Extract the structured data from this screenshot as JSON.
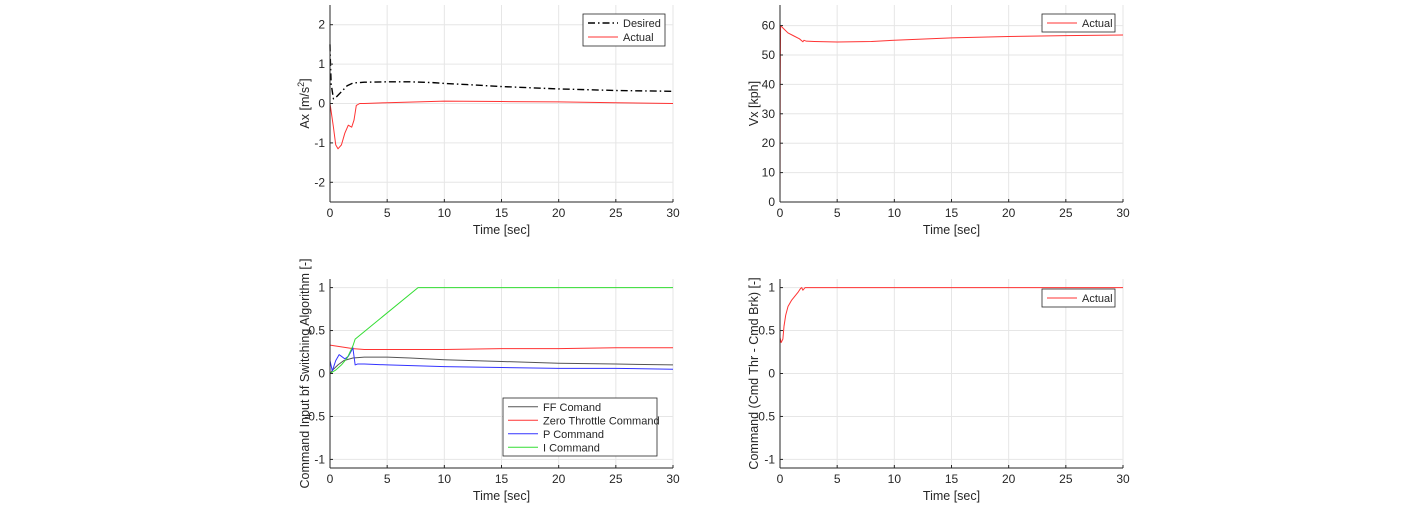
{
  "chart_data": [
    {
      "type": "line",
      "xlabel": "Time [sec]",
      "ylabel": "Ax [m/s^2]",
      "xlim": [
        0,
        30
      ],
      "ylim": [
        -2.5,
        2.5
      ],
      "xticks": [
        0,
        5,
        10,
        15,
        20,
        25,
        30
      ],
      "yticks": [
        -2,
        -1,
        0,
        1,
        2
      ],
      "grid": true,
      "legend_position": "top-right",
      "series": [
        {
          "name": "Desired",
          "color": "#000000",
          "dash": "dash-dot",
          "x": [
            0,
            0.02,
            0.1,
            0.3,
            0.5,
            1.0,
            1.5,
            2.0,
            3,
            5,
            7,
            9,
            10,
            12,
            15,
            20,
            25,
            30
          ],
          "y": [
            1.5,
            1.2,
            0.5,
            0.12,
            0.15,
            0.3,
            0.45,
            0.52,
            0.54,
            0.55,
            0.55,
            0.53,
            0.51,
            0.48,
            0.43,
            0.37,
            0.33,
            0.31
          ]
        },
        {
          "name": "Actual",
          "color": "#ff3333",
          "dash": "solid",
          "x": [
            0,
            0.3,
            0.5,
            0.7,
            1.0,
            1.3,
            1.6,
            1.9,
            2.1,
            2.3,
            2.6,
            3,
            5,
            10,
            15,
            20,
            25,
            30
          ],
          "y": [
            0,
            -0.6,
            -1.05,
            -1.15,
            -1.05,
            -0.75,
            -0.55,
            -0.6,
            -0.42,
            -0.05,
            0.0,
            0.0,
            0.02,
            0.06,
            0.05,
            0.04,
            0.02,
            0.0
          ]
        }
      ]
    },
    {
      "type": "line",
      "xlabel": "Time [sec]",
      "ylabel": "Vx [kph]",
      "xlim": [
        0,
        30
      ],
      "ylim": [
        0,
        67
      ],
      "xticks": [
        0,
        5,
        10,
        15,
        20,
        25,
        30
      ],
      "yticks": [
        0,
        10,
        20,
        30,
        40,
        50,
        60
      ],
      "grid": true,
      "legend_position": "top-right",
      "series": [
        {
          "name": "Actual",
          "color": "#ff3333",
          "dash": "solid",
          "x": [
            0,
            0.02,
            0.05,
            0.3,
            0.7,
            1.2,
            1.7,
            2.0,
            2.1,
            2.3,
            3,
            5,
            8,
            10,
            15,
            20,
            25,
            30
          ],
          "y": [
            0,
            40,
            60,
            59,
            57.5,
            56.5,
            55.5,
            54.5,
            55,
            54.7,
            54.6,
            54.4,
            54.6,
            55,
            55.8,
            56.3,
            56.6,
            56.8
          ]
        }
      ]
    },
    {
      "type": "line",
      "xlabel": "Time [sec]",
      "ylabel": "Command Input bf Switching Algorithm [-]",
      "xlim": [
        0,
        30
      ],
      "ylim": [
        -1.1,
        1.1
      ],
      "xticks": [
        0,
        5,
        10,
        15,
        20,
        25,
        30
      ],
      "yticks": [
        -1,
        -0.5,
        0,
        0.5,
        1
      ],
      "grid": true,
      "legend_position": "bottom-right",
      "series": [
        {
          "name": "FF Comand",
          "color": "#555555",
          "dash": "solid",
          "x": [
            0,
            0.3,
            0.7,
            1.2,
            2,
            3,
            5,
            7,
            10,
            15,
            20,
            25,
            30
          ],
          "y": [
            0.0,
            0.05,
            0.1,
            0.15,
            0.18,
            0.19,
            0.19,
            0.18,
            0.16,
            0.14,
            0.12,
            0.11,
            0.1
          ]
        },
        {
          "name": "Zero Throttle Command",
          "color": "#ff3333",
          "dash": "solid",
          "x": [
            0,
            1,
            2,
            3,
            5,
            10,
            15,
            20,
            25,
            30
          ],
          "y": [
            0.33,
            0.31,
            0.29,
            0.28,
            0.28,
            0.28,
            0.29,
            0.29,
            0.3,
            0.3
          ]
        },
        {
          "name": "P Command",
          "color": "#3333ff",
          "dash": "solid",
          "x": [
            0,
            0.2,
            0.5,
            0.8,
            1.0,
            1.3,
            1.6,
            1.9,
            2.0,
            2.2,
            2.4,
            3,
            5,
            10,
            15,
            20,
            25,
            30
          ],
          "y": [
            0.15,
            0.03,
            0.15,
            0.22,
            0.2,
            0.17,
            0.2,
            0.27,
            0.3,
            0.1,
            0.11,
            0.11,
            0.1,
            0.08,
            0.07,
            0.06,
            0.06,
            0.05
          ]
        },
        {
          "name": "I Command",
          "color": "#33dd33",
          "dash": "solid",
          "x": [
            0,
            0.5,
            1.0,
            1.5,
            2.0,
            2.2,
            7.7,
            10,
            15,
            20,
            25,
            30
          ],
          "y": [
            0,
            0.04,
            0.1,
            0.18,
            0.32,
            0.4,
            1.0,
            1.0,
            1.0,
            1.0,
            1.0,
            1.0
          ]
        }
      ]
    },
    {
      "type": "line",
      "xlabel": "Time [sec]",
      "ylabel": "Command (Cmd Thr - Cmd Brk) [-]",
      "xlim": [
        0,
        30
      ],
      "ylim": [
        -1.1,
        1.1
      ],
      "xticks": [
        0,
        5,
        10,
        15,
        20,
        25,
        30
      ],
      "yticks": [
        -1,
        -0.5,
        0,
        0.5,
        1
      ],
      "grid": true,
      "legend_position": "top-right",
      "series": [
        {
          "name": "Actual",
          "color": "#ff3333",
          "dash": "solid",
          "x": [
            0,
            0.1,
            0.25,
            0.35,
            0.5,
            0.7,
            1.0,
            1.3,
            1.6,
            1.8,
            1.9,
            2.0,
            2.2,
            2.5,
            3,
            5,
            10,
            15,
            20,
            25,
            30
          ],
          "y": [
            0.42,
            0.36,
            0.4,
            0.55,
            0.68,
            0.78,
            0.85,
            0.9,
            0.95,
            0.99,
            1.0,
            0.97,
            1.0,
            1.0,
            1.0,
            1.0,
            1.0,
            1.0,
            1.0,
            1.0,
            1.0
          ]
        }
      ]
    }
  ]
}
